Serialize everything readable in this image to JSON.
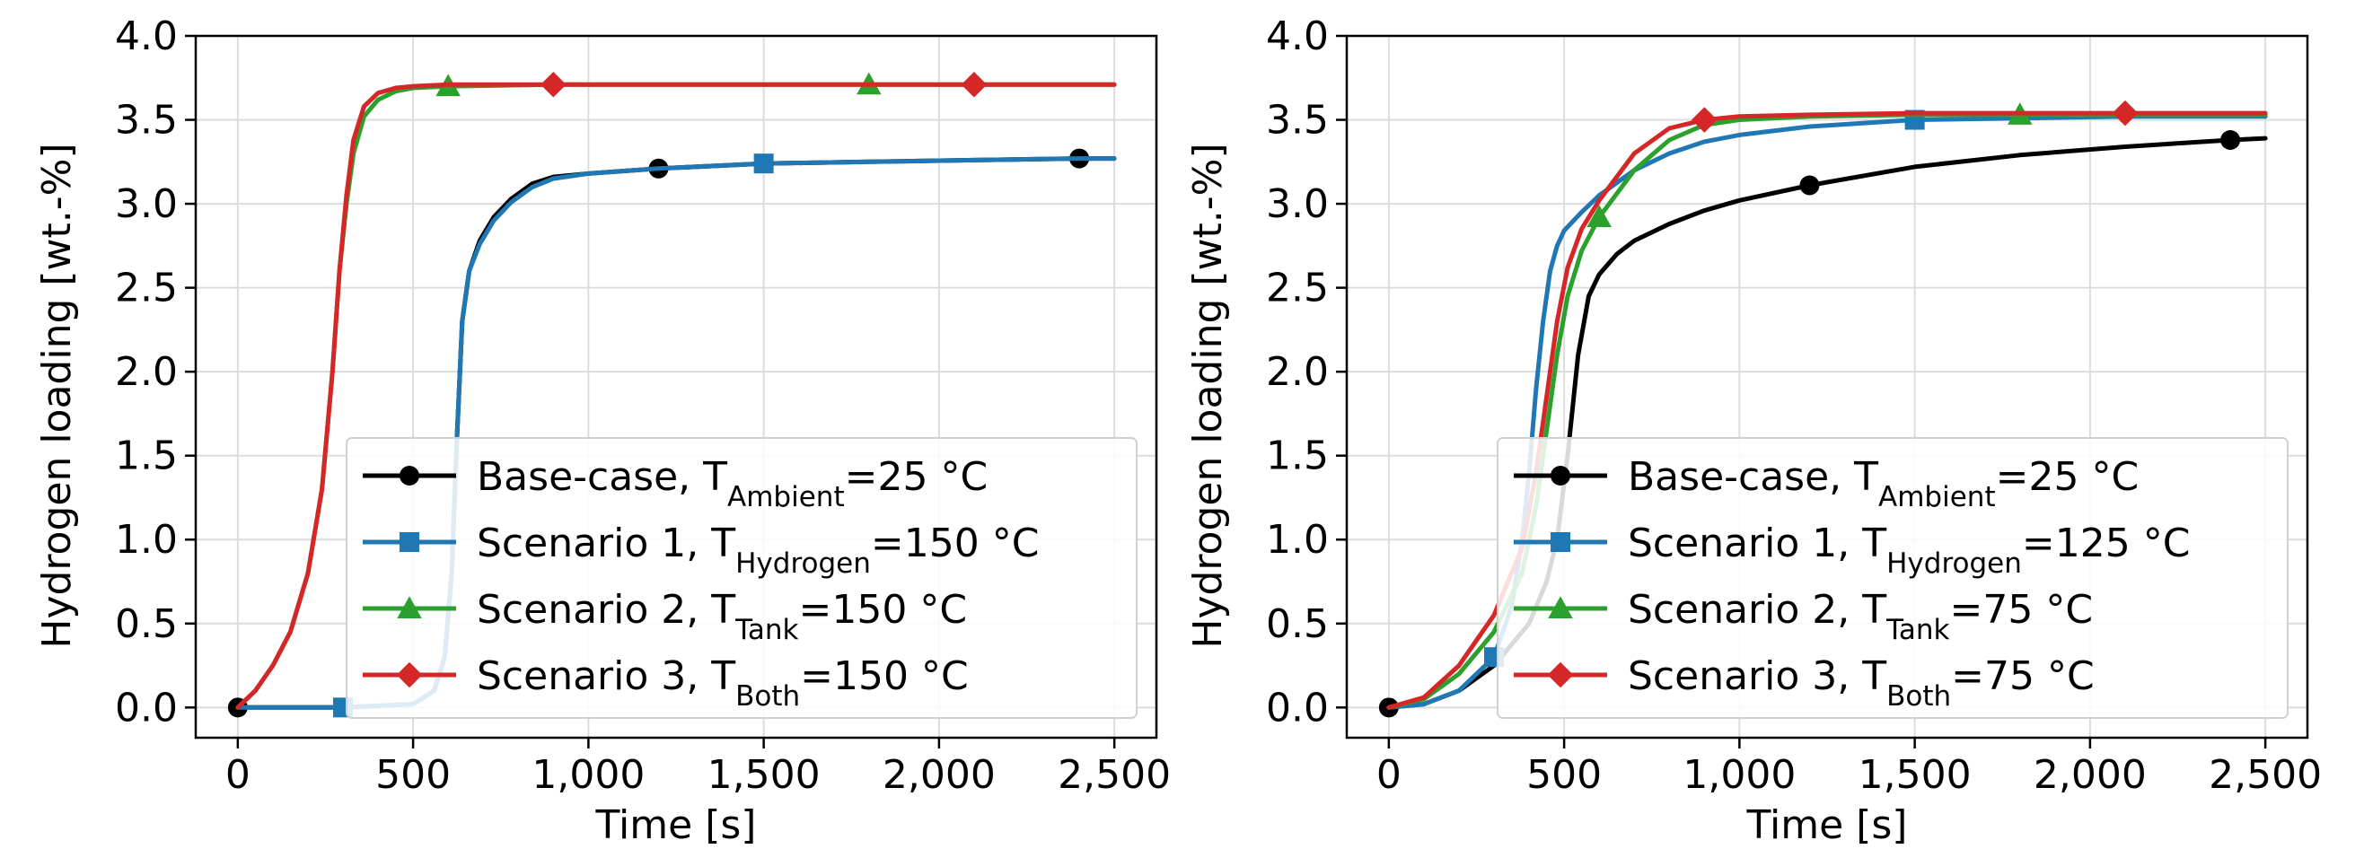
{
  "chart_data": [
    {
      "type": "line",
      "xlabel": "Time [s]",
      "ylabel": "Hydrogen loading [wt.-%]",
      "xlim": [
        -120,
        2620
      ],
      "ylim": [
        -0.18,
        4.0
      ],
      "xticks": [
        0,
        500,
        1000,
        1500,
        2000,
        2500
      ],
      "xtick_labels": [
        "0",
        "500",
        "1,000",
        "1,500",
        "2,000",
        "2,500"
      ],
      "yticks": [
        0.0,
        0.5,
        1.0,
        1.5,
        2.0,
        2.5,
        3.0,
        3.5,
        4.0
      ],
      "ytick_labels": [
        "0.0",
        "0.5",
        "1.0",
        "1.5",
        "2.0",
        "2.5",
        "3.0",
        "3.5",
        "4.0"
      ],
      "grid": true,
      "legend_position": "lower-right",
      "series": [
        {
          "name": "Base-case, T_Ambient=25 °C",
          "legend": {
            "prefix": "Base-case, T",
            "sub": "Ambient",
            "suffix": "=25 °C"
          },
          "color": "#000000",
          "marker": "circle",
          "x": [
            0,
            300,
            500,
            560,
            590,
            610,
            625,
            640,
            660,
            690,
            730,
            780,
            840,
            900,
            1000,
            1200,
            1500,
            1800,
            2100,
            2400,
            2500
          ],
          "y": [
            0.0,
            0.0,
            0.02,
            0.1,
            0.3,
            0.8,
            1.6,
            2.3,
            2.6,
            2.78,
            2.92,
            3.03,
            3.12,
            3.16,
            3.18,
            3.21,
            3.24,
            3.25,
            3.26,
            3.27,
            3.27
          ],
          "marker_x": [
            0,
            1200,
            2400
          ],
          "marker_y": [
            0.0,
            3.21,
            3.27
          ]
        },
        {
          "name": "Scenario 1, T_Hydrogen=150 °C",
          "legend": {
            "prefix": "Scenario 1, T",
            "sub": "Hydrogen",
            "suffix": "=150 °C"
          },
          "color": "#1f77b4",
          "marker": "square",
          "x": [
            0,
            300,
            500,
            560,
            590,
            610,
            625,
            640,
            660,
            690,
            730,
            780,
            840,
            900,
            1000,
            1200,
            1500,
            1800,
            2100,
            2400,
            2500
          ],
          "y": [
            0.0,
            0.0,
            0.02,
            0.1,
            0.3,
            0.8,
            1.6,
            2.3,
            2.6,
            2.76,
            2.9,
            3.01,
            3.1,
            3.15,
            3.18,
            3.21,
            3.24,
            3.25,
            3.26,
            3.27,
            3.27
          ],
          "marker_x": [
            300,
            1500
          ],
          "marker_y": [
            0.0,
            3.24
          ]
        },
        {
          "name": "Scenario 2, T_Tank=150 °C",
          "legend": {
            "prefix": "Scenario 2, T",
            "sub": "Tank",
            "suffix": "=150 °C"
          },
          "color": "#2ca02c",
          "marker": "triangle",
          "x": [
            0,
            50,
            100,
            150,
            200,
            240,
            270,
            290,
            310,
            330,
            360,
            400,
            450,
            500,
            600,
            900,
            2500
          ],
          "y": [
            0.0,
            0.1,
            0.25,
            0.45,
            0.8,
            1.3,
            2.0,
            2.6,
            3.0,
            3.3,
            3.52,
            3.62,
            3.67,
            3.69,
            3.7,
            3.71,
            3.71
          ],
          "marker_x": [
            600,
            1800
          ],
          "marker_y": [
            3.7,
            3.71
          ]
        },
        {
          "name": "Scenario 3, T_Both=150 °C",
          "legend": {
            "prefix": "Scenario 3, T",
            "sub": "Both",
            "suffix": "=150 °C"
          },
          "color": "#d62728",
          "marker": "diamond",
          "x": [
            0,
            50,
            100,
            150,
            200,
            240,
            270,
            290,
            310,
            330,
            360,
            400,
            450,
            500,
            600,
            900,
            2500
          ],
          "y": [
            0.0,
            0.1,
            0.25,
            0.45,
            0.8,
            1.3,
            2.0,
            2.6,
            3.05,
            3.38,
            3.58,
            3.66,
            3.69,
            3.7,
            3.71,
            3.71,
            3.71
          ],
          "marker_x": [
            900,
            2100
          ],
          "marker_y": [
            3.71,
            3.71
          ]
        }
      ]
    },
    {
      "type": "line",
      "xlabel": "Time [s]",
      "ylabel": "Hydrogen loading [wt.-%]",
      "xlim": [
        -120,
        2620
      ],
      "ylim": [
        -0.18,
        4.0
      ],
      "xticks": [
        0,
        500,
        1000,
        1500,
        2000,
        2500
      ],
      "xtick_labels": [
        "0",
        "500",
        "1,000",
        "1,500",
        "2,000",
        "2,500"
      ],
      "yticks": [
        0.0,
        0.5,
        1.0,
        1.5,
        2.0,
        2.5,
        3.0,
        3.5,
        4.0
      ],
      "ytick_labels": [
        "0.0",
        "0.5",
        "1.0",
        "1.5",
        "2.0",
        "2.5",
        "3.0",
        "3.5",
        "4.0"
      ],
      "grid": true,
      "legend_position": "lower-right",
      "series": [
        {
          "name": "Base-case, T_Ambient=25 °C",
          "legend": {
            "prefix": "Base-case, T",
            "sub": "Ambient",
            "suffix": "=25 °C"
          },
          "color": "#000000",
          "marker": "circle",
          "x": [
            0,
            100,
            200,
            300,
            400,
            450,
            480,
            510,
            540,
            570,
            600,
            650,
            700,
            800,
            900,
            1000,
            1200,
            1500,
            1800,
            2100,
            2400,
            2500
          ],
          "y": [
            0.0,
            0.02,
            0.1,
            0.25,
            0.5,
            0.75,
            1.0,
            1.5,
            2.1,
            2.45,
            2.58,
            2.7,
            2.78,
            2.88,
            2.96,
            3.02,
            3.11,
            3.22,
            3.29,
            3.34,
            3.38,
            3.39
          ],
          "marker_x": [
            0,
            1200,
            2400
          ],
          "marker_y": [
            0.0,
            3.11,
            3.38
          ]
        },
        {
          "name": "Scenario 1, T_Hydrogen=125 °C",
          "legend": {
            "prefix": "Scenario 1, T",
            "sub": "Hydrogen",
            "suffix": "=125 °C"
          },
          "color": "#1f77b4",
          "marker": "square",
          "x": [
            0,
            100,
            200,
            300,
            350,
            380,
            400,
            420,
            440,
            460,
            480,
            500,
            550,
            600,
            700,
            800,
            900,
            1000,
            1200,
            1500,
            1800,
            2100,
            2500
          ],
          "y": [
            0.0,
            0.02,
            0.1,
            0.3,
            0.6,
            1.0,
            1.4,
            1.9,
            2.3,
            2.6,
            2.75,
            2.84,
            2.95,
            3.05,
            3.2,
            3.3,
            3.37,
            3.41,
            3.46,
            3.5,
            3.51,
            3.52,
            3.52
          ],
          "marker_x": [
            300,
            1500
          ],
          "marker_y": [
            0.3,
            3.5
          ]
        },
        {
          "name": "Scenario 2, T_Tank=75 °C",
          "legend": {
            "prefix": "Scenario 2, T",
            "sub": "Tank",
            "suffix": "=75 °C"
          },
          "color": "#2ca02c",
          "marker": "triangle",
          "x": [
            0,
            100,
            200,
            300,
            380,
            420,
            450,
            480,
            510,
            550,
            600,
            700,
            800,
            900,
            1000,
            1200,
            1500,
            1800,
            2100,
            2500
          ],
          "y": [
            0.0,
            0.05,
            0.2,
            0.45,
            0.8,
            1.2,
            1.65,
            2.1,
            2.45,
            2.72,
            2.92,
            3.2,
            3.38,
            3.47,
            3.5,
            3.52,
            3.53,
            3.53,
            3.53,
            3.53
          ],
          "marker_x": [
            600,
            1800
          ],
          "marker_y": [
            2.92,
            3.53
          ]
        },
        {
          "name": "Scenario 3, T_Both=75 °C",
          "legend": {
            "prefix": "Scenario 3, T",
            "sub": "Both",
            "suffix": "=75 °C"
          },
          "color": "#d62728",
          "marker": "diamond",
          "x": [
            0,
            100,
            200,
            300,
            380,
            420,
            450,
            480,
            510,
            550,
            600,
            700,
            800,
            900,
            1000,
            1200,
            1500,
            1800,
            2100,
            2500
          ],
          "y": [
            0.0,
            0.06,
            0.25,
            0.55,
            0.95,
            1.4,
            1.85,
            2.3,
            2.62,
            2.85,
            3.02,
            3.3,
            3.45,
            3.5,
            3.52,
            3.53,
            3.54,
            3.54,
            3.54,
            3.54
          ],
          "marker_x": [
            900,
            2100
          ],
          "marker_y": [
            3.5,
            3.54
          ]
        }
      ]
    }
  ]
}
